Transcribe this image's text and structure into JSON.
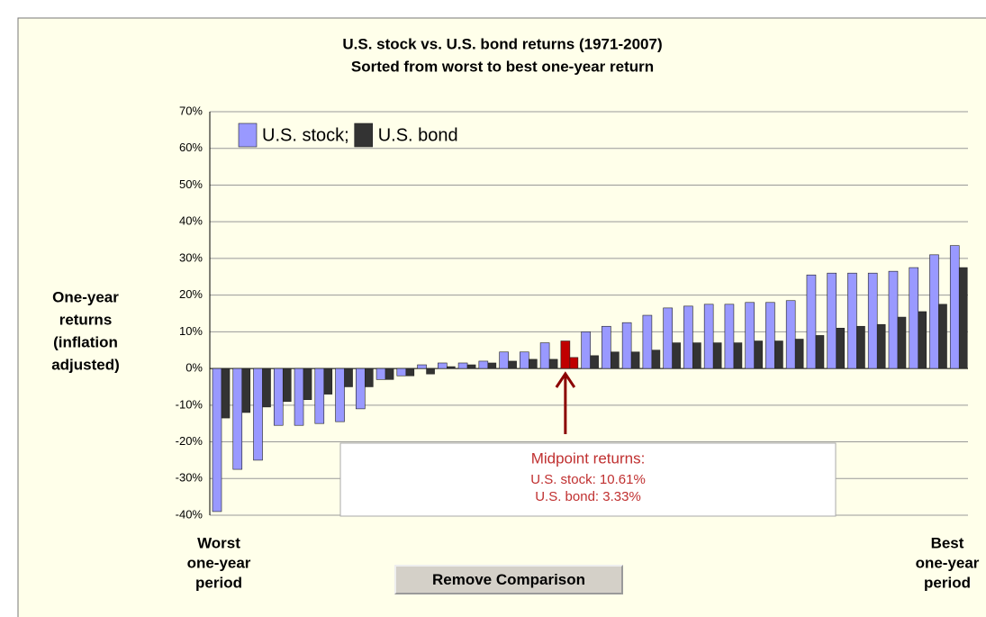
{
  "chart_data": {
    "type": "bar",
    "title": "U.S. stock vs. U.S. bond returns (1971-2007)",
    "subtitle": "Sorted from worst to best one-year return",
    "y_label_lines": [
      "One-year",
      "returns",
      "(inflation",
      "adjusted)"
    ],
    "left_label_lines": [
      "Worst",
      "one-year",
      "period"
    ],
    "right_label_lines": [
      "Best",
      "one-year",
      "period"
    ],
    "ylim": [
      -40,
      70
    ],
    "yticks": [
      {
        "value": -40,
        "label": "-40%"
      },
      {
        "value": -30,
        "label": "-30%"
      },
      {
        "value": -20,
        "label": "-20%"
      },
      {
        "value": -10,
        "label": "-10%"
      },
      {
        "value": 0,
        "label": "0%"
      },
      {
        "value": 10,
        "label": "10%"
      },
      {
        "value": 20,
        "label": "20%"
      },
      {
        "value": 30,
        "label": "30%"
      },
      {
        "value": 40,
        "label": "40%"
      },
      {
        "value": 50,
        "label": "50%"
      },
      {
        "value": 60,
        "label": "60%"
      },
      {
        "value": 70,
        "label": "70%"
      }
    ],
    "grid": true,
    "legend": "top-left",
    "highlight": {
      "index": 17,
      "color": "#c00000"
    },
    "series": [
      {
        "name": "U.S. stock;",
        "color": "#9999ff",
        "values": [
          -39,
          -27.5,
          -25,
          -15.5,
          -15.5,
          -15,
          -14.5,
          -11,
          -3,
          -2,
          1,
          1.5,
          1.5,
          2,
          4.5,
          4.5,
          7,
          7.5,
          10,
          11.5,
          12.5,
          14.5,
          16.5,
          17,
          17.5,
          17.5,
          18,
          18,
          18.5,
          25.5,
          26,
          26,
          26,
          26.5,
          27.5,
          31,
          33.5
        ]
      },
      {
        "name": "U.S. bond",
        "color": "#333333",
        "values": [
          -13.5,
          -12,
          -10.5,
          -9,
          -8.5,
          -7,
          -5,
          -5,
          -3,
          -2,
          -1.5,
          0.5,
          1,
          1.5,
          2,
          2.5,
          2.5,
          3,
          3.5,
          4.5,
          4.5,
          5,
          7,
          7,
          7,
          7,
          7.5,
          7.5,
          8,
          9,
          11,
          11.5,
          12,
          14,
          15.5,
          17.5,
          27.5
        ]
      }
    ],
    "annotation": {
      "title": "Midpoint returns:",
      "lines": [
        "U.S. stock: 10.61%",
        "U.S. bond: 3.33%"
      ]
    },
    "button": "Remove Comparison"
  }
}
